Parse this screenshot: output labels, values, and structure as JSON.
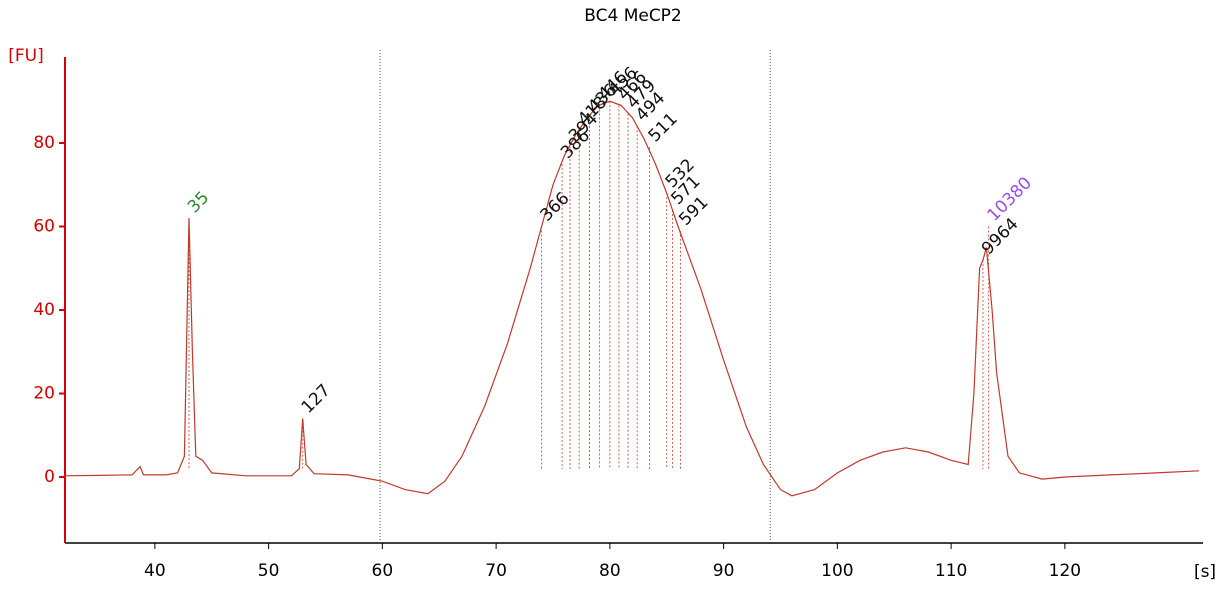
{
  "chart_data": {
    "type": "line",
    "title": "BC4 MeCP2",
    "ylabel": "[FU]",
    "xlabel": "[s]",
    "xlim": [
      32.1,
      132.1
    ],
    "ylim": [
      -15.8,
      100.6
    ],
    "xticks": [
      40,
      50,
      60,
      70,
      80,
      90,
      100,
      110,
      120
    ],
    "yticks": [
      0,
      20,
      40,
      60,
      80
    ],
    "region_markers": [
      59.8,
      94.1
    ],
    "series": [
      {
        "name": "BC4 MeCP2",
        "color": "#c0392b",
        "x": [
          32,
          35,
          38,
          38.7,
          39,
          41,
          42,
          42.6,
          43,
          43.3,
          43.6,
          44.2,
          45,
          48,
          52,
          52.7,
          53,
          53.3,
          54,
          57,
          60,
          62,
          64,
          65.5,
          67,
          69,
          71,
          73,
          74,
          75,
          76,
          77,
          78,
          79,
          80,
          81,
          82,
          83,
          84,
          85,
          86,
          88,
          90,
          92,
          93.5,
          95,
          96,
          98,
          100,
          102,
          104,
          106,
          108,
          110,
          111.5,
          112,
          112.5,
          112.8,
          113.1,
          113.6,
          114,
          115,
          116,
          118,
          120,
          124,
          128,
          131.8
        ],
        "values": [
          0.3,
          0.4,
          0.5,
          2.5,
          0.5,
          0.5,
          1,
          5,
          62,
          30,
          5,
          4,
          1,
          0.3,
          0.3,
          2,
          14,
          3,
          0.8,
          0.5,
          -1,
          -3,
          -4,
          -1,
          5,
          17,
          32,
          50,
          60,
          70,
          77,
          82,
          86,
          89,
          90,
          89,
          86,
          81,
          75,
          68,
          60,
          45,
          28,
          12,
          3,
          -3,
          -4.5,
          -3,
          1,
          4,
          6,
          7,
          6,
          4,
          3,
          20,
          50,
          52,
          55,
          40,
          25,
          5,
          1,
          -0.5,
          0,
          0.5,
          1,
          1.5
        ]
      }
    ],
    "annotations": [
      {
        "label": "35",
        "x": 43,
        "y": 62,
        "color": "#2e8b2e"
      },
      {
        "label": "127",
        "x": 53,
        "y": 14,
        "color": "#111111"
      },
      {
        "label": "366",
        "x": 74,
        "y": 60,
        "color": "#111111"
      },
      {
        "label": "386",
        "x": 75.8,
        "y": 75,
        "color": "#111111"
      },
      {
        "label": "394",
        "x": 76.5,
        "y": 79,
        "color": "#111111"
      },
      {
        "label": "418",
        "x": 77.3,
        "y": 83,
        "color": "#111111"
      },
      {
        "label": "436",
        "x": 78.2,
        "y": 86,
        "color": "#111111"
      },
      {
        "label": "446",
        "x": 79.1,
        "y": 89,
        "color": "#111111"
      },
      {
        "label": "456",
        "x": 80,
        "y": 90,
        "color": "#111111"
      },
      {
        "label": "466",
        "x": 80.8,
        "y": 89,
        "color": "#111111"
      },
      {
        "label": "479",
        "x": 81.6,
        "y": 87,
        "color": "#111111"
      },
      {
        "label": "494",
        "x": 82.4,
        "y": 84,
        "color": "#111111"
      },
      {
        "label": "511",
        "x": 83.5,
        "y": 79,
        "color": "#111111"
      },
      {
        "label": "532",
        "x": 85,
        "y": 68,
        "color": "#111111"
      },
      {
        "label": "571",
        "x": 85.5,
        "y": 64,
        "color": "#111111"
      },
      {
        "label": "591",
        "x": 86.2,
        "y": 59,
        "color": "#111111"
      },
      {
        "label": "9964",
        "x": 112.8,
        "y": 52,
        "color": "#111111"
      },
      {
        "label": "10380",
        "x": 113.3,
        "y": 60,
        "color": "#9b4dea"
      }
    ]
  }
}
